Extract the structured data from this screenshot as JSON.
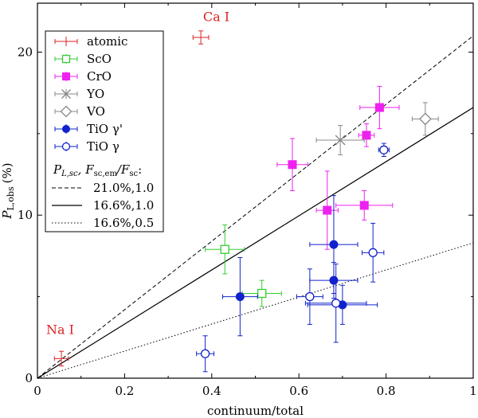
{
  "chart_data": {
    "type": "scatter",
    "xlabel": "continuum/total",
    "ylabel_main": "P",
    "ylabel_sub": "L,obs",
    "ylabel_unit": "(%)",
    "xlim": [
      0,
      1
    ],
    "ylim": [
      0,
      23
    ],
    "x_ticks": [
      {
        "v": 0,
        "label": "0"
      },
      {
        "v": 0.2,
        "label": "0.2"
      },
      {
        "v": 0.4,
        "label": "0.4"
      },
      {
        "v": 0.6,
        "label": "0.6"
      },
      {
        "v": 0.8,
        "label": "0.8"
      },
      {
        "v": 1,
        "label": "1"
      }
    ],
    "y_ticks": [
      {
        "v": 0,
        "label": "0"
      },
      {
        "v": 10,
        "label": "10"
      },
      {
        "v": 20,
        "label": "20"
      }
    ],
    "series": [
      {
        "name": "atomic",
        "color": "#dd2222",
        "marker": "none",
        "points": [
          {
            "x": 0.055,
            "y": 1.2,
            "xerr": 0.016,
            "yerr": 0.45
          },
          {
            "x": 0.375,
            "y": 20.9,
            "xerr": 0.018,
            "yerr": 0.4
          }
        ]
      },
      {
        "name": "ScO",
        "color": "#33cc33",
        "marker": "open-square",
        "points": [
          {
            "x": 0.43,
            "y": 7.9,
            "xerr": 0.045,
            "yerr": 1.5
          },
          {
            "x": 0.515,
            "y": 5.2,
            "xerr": 0.045,
            "yerr": 0.8
          }
        ]
      },
      {
        "name": "CrO",
        "color": "#ee22ee",
        "marker": "filled-square",
        "points": [
          {
            "x": 0.585,
            "y": 13.1,
            "xerr": 0.035,
            "yerr": 1.6
          },
          {
            "x": 0.665,
            "y": 10.3,
            "xerr": 0.025,
            "yerr": 2.4
          },
          {
            "x": 0.75,
            "y": 10.6,
            "xerr": 0.065,
            "yerr": 0.9
          },
          {
            "x": 0.755,
            "y": 14.9,
            "xerr": 0.018,
            "yerr": 0.7
          },
          {
            "x": 0.785,
            "y": 16.6,
            "xerr": 0.045,
            "yerr": 1.3
          }
        ]
      },
      {
        "name": "YO",
        "color": "#888888",
        "marker": "cross",
        "points": [
          {
            "x": 0.695,
            "y": 14.6,
            "xerr": 0.055,
            "yerr": 0.9
          }
        ]
      },
      {
        "name": "VO",
        "color": "#888888",
        "marker": "open-diamond",
        "points": [
          {
            "x": 0.89,
            "y": 15.9,
            "xerr": 0.03,
            "yerr": 1.0
          }
        ]
      },
      {
        "name": "TiO γ'",
        "color": "#1122cc",
        "marker": "filled-circle",
        "points": [
          {
            "x": 0.465,
            "y": 5.0,
            "xerr": 0.04,
            "yerr": 2.4
          },
          {
            "x": 0.68,
            "y": 8.2,
            "xerr": 0.055,
            "yerr": 3.0
          },
          {
            "x": 0.68,
            "y": 6.0,
            "xerr": 0.055,
            "yerr": 1.1
          },
          {
            "x": 0.7,
            "y": 4.5,
            "xerr": 0.08,
            "yerr": 1.2
          }
        ]
      },
      {
        "name": "TiO γ",
        "color": "#1122cc",
        "marker": "open-circle",
        "points": [
          {
            "x": 0.385,
            "y": 1.5,
            "xerr": 0.02,
            "yerr": 1.1
          },
          {
            "x": 0.625,
            "y": 5.0,
            "xerr": 0.03,
            "yerr": 1.7
          },
          {
            "x": 0.685,
            "y": 4.6,
            "xerr": 0.07,
            "yerr": 2.4
          },
          {
            "x": 0.77,
            "y": 7.7,
            "xerr": 0.025,
            "yerr": 1.8
          },
          {
            "x": 0.795,
            "y": 14.0,
            "xerr": 0.012,
            "yerr": 0.4
          }
        ]
      }
    ],
    "lines": [
      {
        "label": "21.0%,1.0",
        "slope": 21.0,
        "dash": "5,3"
      },
      {
        "label": "16.6%,1.0",
        "slope": 16.6,
        "dash": ""
      },
      {
        "label": "16.6%,0.5",
        "slope": 8.3,
        "dash": "1.5,2.5"
      }
    ],
    "legend_placement": "top-left",
    "legend_lines_title_parts": [
      "P",
      "L,sc",
      ", F",
      "sc,em",
      "/F",
      "sc",
      ":"
    ],
    "annotations": [
      {
        "text": "Ca I",
        "x": 0.38,
        "y": 21.9,
        "color": "#dd2222"
      },
      {
        "text": "Na I",
        "x": 0.02,
        "y": 2.7,
        "color": "#dd2222"
      }
    ]
  }
}
